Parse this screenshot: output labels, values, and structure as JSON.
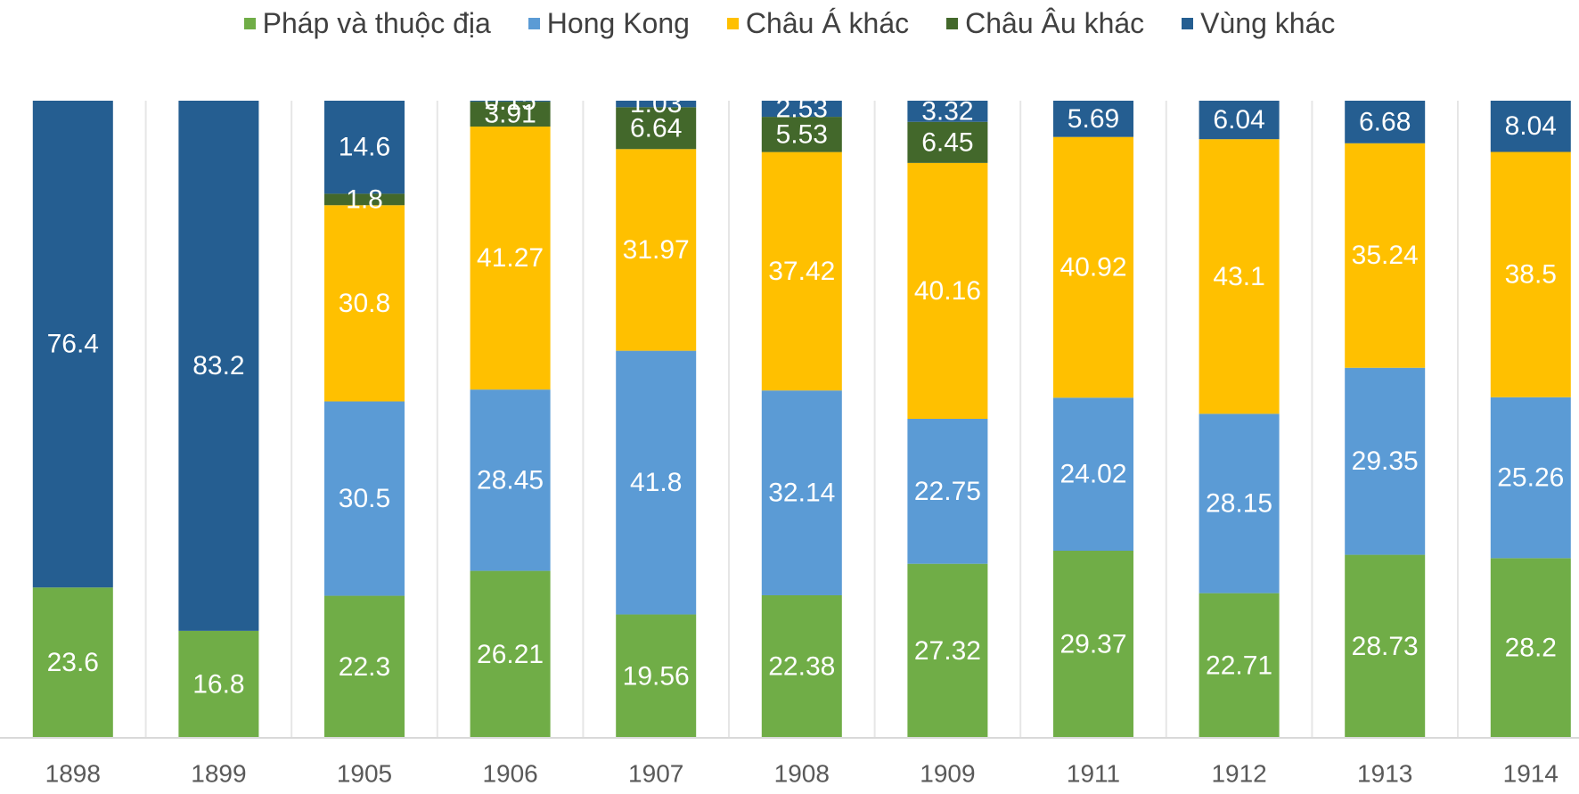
{
  "chart_data": {
    "type": "bar",
    "stacked": true,
    "normalized": true,
    "categories": [
      "1898",
      "1899",
      "1905",
      "1906",
      "1907",
      "1908",
      "1909",
      "1911",
      "1912",
      "1913",
      "1914"
    ],
    "series": [
      {
        "name": "Pháp và thuộc địa",
        "color": "#70ad47",
        "values": [
          23.6,
          16.8,
          22.3,
          26.21,
          19.56,
          22.38,
          27.32,
          29.37,
          22.71,
          28.73,
          28.2
        ]
      },
      {
        "name": "Hong Kong",
        "color": "#5b9bd5",
        "values": [
          0,
          0,
          30.5,
          28.45,
          41.8,
          32.14,
          22.75,
          24.02,
          28.15,
          29.35,
          25.26
        ]
      },
      {
        "name": "Châu Á khác",
        "color": "#ffc000",
        "values": [
          0,
          0,
          30.8,
          41.27,
          31.97,
          37.42,
          40.16,
          40.92,
          43.1,
          35.24,
          38.5
        ]
      },
      {
        "name": "Châu Âu khác",
        "color": "#43682b",
        "values": [
          0,
          0,
          1.8,
          3.91,
          6.64,
          5.53,
          6.45,
          0,
          0,
          0,
          0
        ]
      },
      {
        "name": "Vùng khác",
        "color": "#255e91",
        "values": [
          76.4,
          83.2,
          14.6,
          0.15,
          1.03,
          2.53,
          3.32,
          5.69,
          6.04,
          6.68,
          8.04
        ]
      }
    ],
    "title": "",
    "xlabel": "",
    "ylabel": "",
    "ylim": [
      0,
      100
    ],
    "legend_position": "top",
    "grid": false
  }
}
